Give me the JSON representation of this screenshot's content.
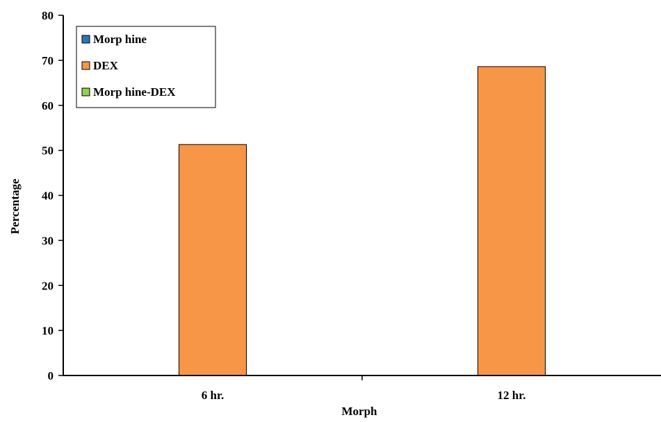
{
  "chart_data": {
    "type": "bar",
    "categories": [
      "6 hr.",
      "12 hr."
    ],
    "series": [
      {
        "name": "Morp hine",
        "color": "#2e75b6",
        "values": [
          0,
          0
        ]
      },
      {
        "name": "DEX",
        "color": "#f79646",
        "values": [
          51.3,
          68.6
        ]
      },
      {
        "name": "Morp hine-DEX",
        "color": "#92d050",
        "values": [
          0,
          0
        ]
      }
    ],
    "xlabel": "Morph",
    "ylabel": "Percentage",
    "ylim": [
      0,
      80
    ],
    "yticks": [
      0,
      10,
      20,
      30,
      40,
      50,
      60,
      70,
      80
    ],
    "grid": false,
    "legend_position": "top-left"
  }
}
